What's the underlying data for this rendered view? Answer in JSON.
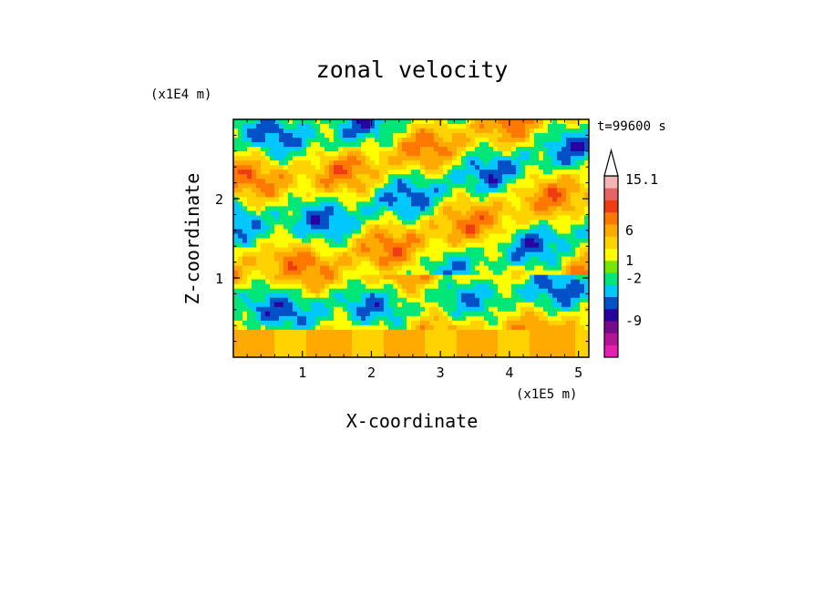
{
  "chart_data": {
    "type": "heatmap",
    "title": "zonal velocity",
    "xlabel": "X-coordinate",
    "ylabel": "Z-coordinate",
    "x_unit": "(x1E5 m)",
    "y_unit": "(x1E4 m)",
    "time_label": "t=99600 s",
    "xlim": [
      0,
      5.15
    ],
    "ylim": [
      0,
      3.0
    ],
    "x_ticks": [
      1,
      2,
      3,
      4,
      5
    ],
    "y_ticks": [
      1,
      2
    ],
    "x_tick_labels": [
      "1",
      "2",
      "3",
      "4",
      "5"
    ],
    "y_tick_labels": [
      "1",
      "2"
    ],
    "colorbar": {
      "labels": [
        {
          "text": "15.1",
          "value": 15.1
        },
        {
          "text": "6",
          "value": 6
        },
        {
          "text": "1",
          "value": 1
        },
        {
          "text": "-2",
          "value": -2
        },
        {
          "text": "-9",
          "value": -9
        }
      ],
      "colors": [
        "#e81eb4",
        "#b41496",
        "#780a8c",
        "#2800a0",
        "#0050c8",
        "#00c8ff",
        "#00e678",
        "#78e600",
        "#ffff00",
        "#ffd200",
        "#ffaa00",
        "#ff7800",
        "#f03c14",
        "#e66464",
        "#f5b4b4"
      ],
      "extend_max": true
    },
    "field_colors": {
      "strong_negative": "#2800a0",
      "negative": "#0050c8",
      "weak_negative": "#00c8ff",
      "near_zero": "#00e678",
      "weak_positive": "#ffff00",
      "positive": "#ffd200",
      "moderate_positive": "#ffaa00",
      "strong_positive": "#ff7800",
      "max_positive": "#f03c14"
    }
  }
}
